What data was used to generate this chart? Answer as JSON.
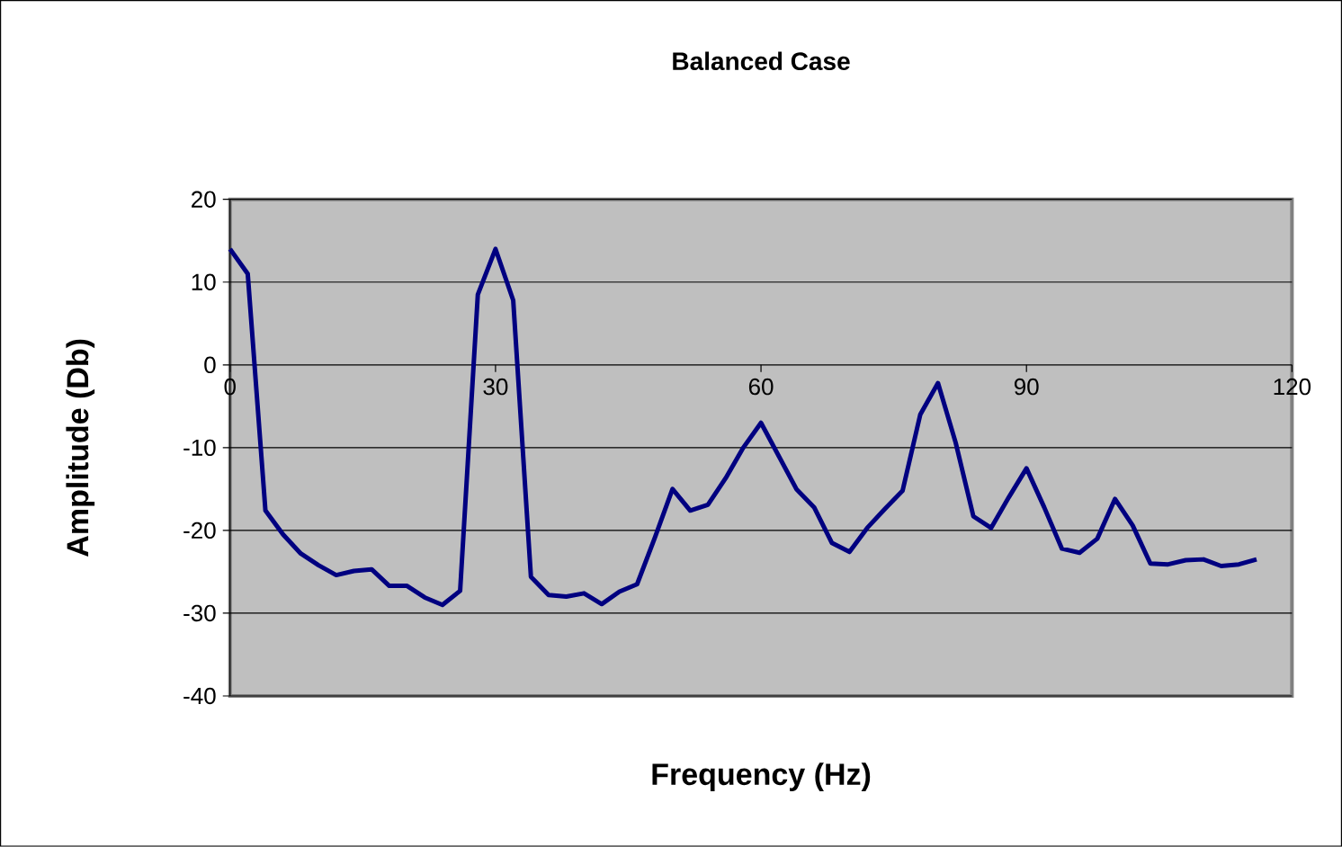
{
  "chart_data": {
    "type": "line",
    "title": "Balanced Case",
    "xlabel": "Frequency (Hz)",
    "ylabel": "Amplitude (Db)",
    "x": [
      0,
      2,
      4,
      6,
      8,
      10,
      12,
      14,
      16,
      18,
      20,
      22,
      24,
      26,
      28,
      30,
      32,
      34,
      36,
      38,
      40,
      42,
      44,
      46,
      48,
      50,
      52,
      54,
      56,
      58,
      60,
      62,
      64,
      66,
      68,
      70,
      72,
      74,
      76,
      78,
      80,
      82,
      84,
      86,
      88,
      90,
      92,
      94,
      96,
      98,
      100,
      102,
      104,
      106,
      108,
      110,
      112,
      114,
      116
    ],
    "values": [
      14,
      11,
      -17.6,
      -20.5,
      -22.8,
      -24.2,
      -25.4,
      -24.9,
      -24.7,
      -26.7,
      -26.7,
      -28.1,
      -29,
      -27.3,
      8.5,
      14,
      7.8,
      -25.6,
      -27.8,
      -28,
      -27.6,
      -28.9,
      -27.4,
      -26.5,
      -20.9,
      -15,
      -17.6,
      -16.9,
      -13.7,
      -10,
      -7,
      -11,
      -15,
      -17.2,
      -21.5,
      -22.6,
      -19.7,
      -17.4,
      -15.2,
      -6,
      -2.2,
      -9.4,
      -18.3,
      -19.7,
      -16,
      -12.5,
      -17.2,
      -22.2,
      -22.7,
      -21,
      -16.2,
      -19.4,
      -24,
      -24.1,
      -23.6,
      -23.5,
      -24.3,
      -24.1,
      -23.5
    ],
    "color": "#000080",
    "xlim": [
      0,
      120
    ],
    "xticks": [
      0,
      30,
      60,
      90,
      120
    ],
    "ylim": [
      -40,
      20
    ],
    "yticks": [
      -40,
      -30,
      -20,
      -10,
      0,
      10,
      20
    ],
    "grid": "y",
    "line_style": "solid"
  }
}
